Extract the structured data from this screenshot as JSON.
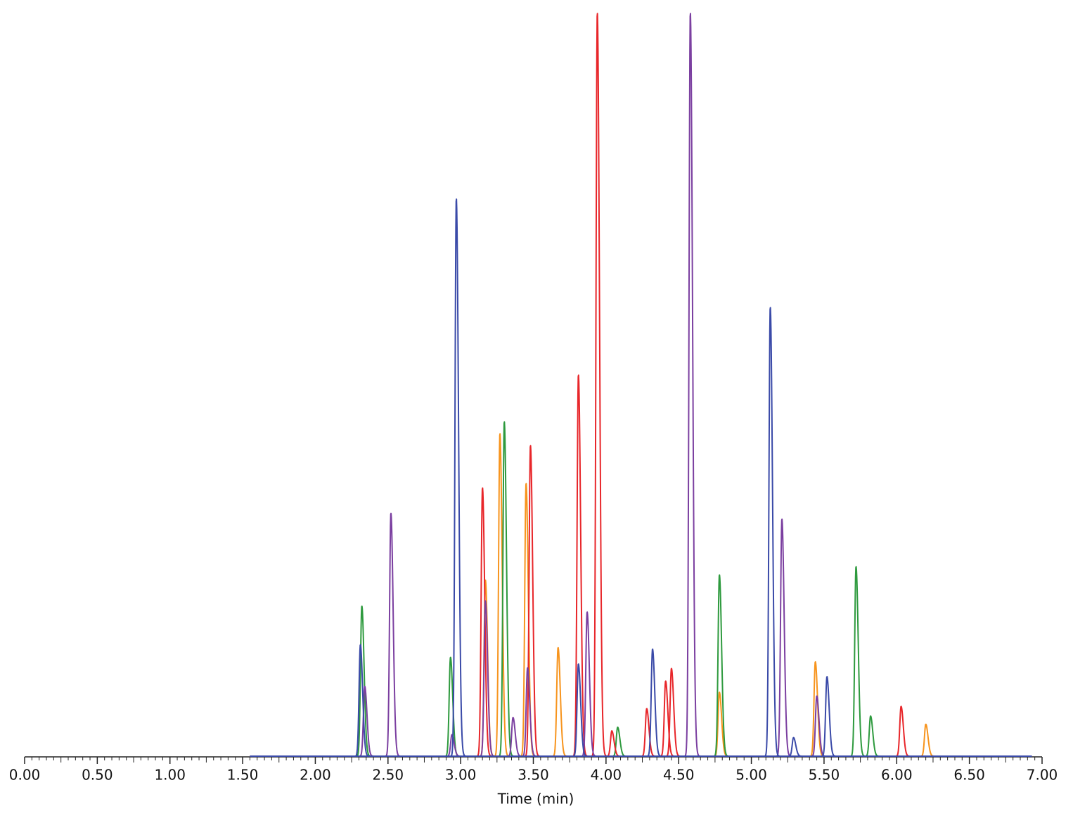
{
  "chart_data": {
    "type": "chromatogram",
    "x_label": "Time (min)",
    "xlim": [
      0,
      7
    ],
    "ylim": [
      0,
      100
    ],
    "trace_range": [
      1.55,
      6.93
    ],
    "xticks": [
      {
        "value": 0,
        "label": "0.00"
      },
      {
        "value": 0.5,
        "label": "0.50"
      },
      {
        "value": 1,
        "label": "1.00"
      },
      {
        "value": 1.5,
        "label": "1.50"
      },
      {
        "value": 2,
        "label": "2.00"
      },
      {
        "value": 2.5,
        "label": "2.50"
      },
      {
        "value": 3,
        "label": "3.00"
      },
      {
        "value": 3.5,
        "label": "3.50"
      },
      {
        "value": 4,
        "label": "4.00"
      },
      {
        "value": 4.5,
        "label": "4.50"
      },
      {
        "value": 5,
        "label": "5.00"
      },
      {
        "value": 5.5,
        "label": "5.50"
      },
      {
        "value": 6,
        "label": "6.00"
      },
      {
        "value": 6.5,
        "label": "6.50"
      },
      {
        "value": 7,
        "label": "7.00"
      }
    ],
    "series": [
      {
        "color": "#f7941d",
        "x": [
          3.17,
          3.27,
          3.45,
          3.67,
          4.78,
          5.44,
          6.2
        ],
        "values": [
          23.7,
          43.4,
          36.7,
          14.6,
          8.6,
          12.7,
          4.3
        ]
      },
      {
        "color": "#2e9a3e",
        "x": [
          2.32,
          2.93,
          3.3,
          4.08,
          4.78,
          5.72,
          5.82
        ],
        "values": [
          20.2,
          13.3,
          45.0,
          3.9,
          24.4,
          25.5,
          5.4
        ]
      },
      {
        "color": "#e8262a",
        "x": [
          3.15,
          3.48,
          3.81,
          3.94,
          4.04,
          4.28,
          4.41,
          4.45,
          6.03
        ],
        "values": [
          36.1,
          41.8,
          51.3,
          100,
          3.4,
          6.4,
          10.1,
          11.8,
          6.7
        ]
      },
      {
        "color": "#7b3fa0",
        "x": [
          2.34,
          2.52,
          2.94,
          3.17,
          3.36,
          3.46,
          3.87,
          4.58,
          5.21,
          5.45
        ],
        "values": [
          9.4,
          32.7,
          2.9,
          20.9,
          5.2,
          11.9,
          19.4,
          100,
          31.9,
          8.1
        ]
      },
      {
        "color": "#3a4aa8",
        "x": [
          2.31,
          2.97,
          3.81,
          4.32,
          5.13,
          5.29,
          5.52
        ],
        "values": [
          15.0,
          75.0,
          12.4,
          14.4,
          60.4,
          2.5,
          10.7
        ]
      }
    ]
  }
}
